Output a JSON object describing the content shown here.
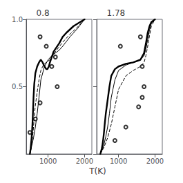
{
  "chart_data": {
    "type": "line",
    "xlabel": "T(K)",
    "color": "#000000",
    "grid": false,
    "panels": [
      {
        "title": "0.8",
        "xlim": [
          400,
          2200
        ],
        "ylim": [
          0.0,
          1.0
        ],
        "xticks": [
          1000,
          2000
        ],
        "yticks": [
          0.5,
          {
            "value": 1.0,
            "label": "1.0"
          }
        ],
        "series": [
          {
            "type": "line",
            "line_style": "bold",
            "x": [
              500,
              510,
              520,
              530,
              540,
              550,
              560,
              570,
              580,
              590,
              600,
              620,
              650,
              700,
              750,
              800,
              850,
              900,
              950,
              980,
              1000,
              1020,
              1050,
              1100,
              1150,
              1200,
              1300,
              1400,
              1500,
              1700,
              2000
            ],
            "values": [
              0.0,
              0.02,
              0.04,
              0.07,
              0.1,
              0.13,
              0.17,
              0.22,
              0.28,
              0.35,
              0.42,
              0.52,
              0.6,
              0.65,
              0.68,
              0.7,
              0.68,
              0.65,
              0.63,
              0.63,
              0.64,
              0.65,
              0.68,
              0.72,
              0.76,
              0.78,
              0.82,
              0.87,
              0.9,
              0.95,
              1.0
            ]
          },
          {
            "type": "line",
            "line_style": "solid",
            "x": [
              500,
              520,
              550,
              600,
              650,
              700,
              750,
              800,
              900,
              1000,
              1100,
              1200,
              1300,
              1400,
              1600,
              1800,
              2000
            ],
            "values": [
              0.0,
              0.02,
              0.06,
              0.12,
              0.2,
              0.3,
              0.42,
              0.55,
              0.65,
              0.7,
              0.73,
              0.75,
              0.77,
              0.8,
              0.87,
              0.93,
              1.0
            ]
          },
          {
            "type": "line",
            "line_style": "dashed",
            "x": [
              500,
              520,
              540,
              560,
              580,
              600,
              620,
              650,
              700,
              750,
              800,
              850,
              900,
              950,
              1000,
              1050,
              1100,
              1200,
              1400,
              1600,
              1800,
              2000
            ],
            "values": [
              0.0,
              0.02,
              0.05,
              0.09,
              0.14,
              0.2,
              0.28,
              0.36,
              0.46,
              0.55,
              0.62,
              0.65,
              0.67,
              0.68,
              0.69,
              0.7,
              0.72,
              0.76,
              0.83,
              0.89,
              0.94,
              1.0
            ]
          },
          {
            "type": "scatter",
            "marker": "open_circle",
            "x": [
              780,
              950,
              1200,
              1100,
              1250,
              780,
              650,
              500
            ],
            "values": [
              0.87,
              0.8,
              0.72,
              0.65,
              0.5,
              0.38,
              0.26,
              0.16
            ]
          }
        ]
      },
      {
        "title": "1.78",
        "xlim": [
          400,
          2200
        ],
        "ylim": [
          0.0,
          1.0
        ],
        "xticks": [
          1000,
          2000
        ],
        "yticks": [
          0.0,
          0.5,
          1.0
        ],
        "tick_labels": "x",
        "series": [
          {
            "type": "line",
            "line_style": "bold",
            "x": [
              500,
              520,
              540,
              560,
              580,
              600,
              620,
              650,
              700,
              750,
              800,
              900,
              1000,
              1100,
              1200,
              1400,
              1600,
              1700,
              1750,
              1800,
              1850,
              1900,
              2000
            ],
            "values": [
              0.0,
              0.02,
              0.04,
              0.07,
              0.11,
              0.16,
              0.22,
              0.3,
              0.4,
              0.5,
              0.58,
              0.63,
              0.65,
              0.66,
              0.67,
              0.68,
              0.7,
              0.75,
              0.82,
              0.9,
              0.95,
              0.98,
              1.0
            ]
          },
          {
            "type": "line",
            "line_style": "solid",
            "x": [
              500,
              550,
              600,
              650,
              700,
              750,
              800,
              900,
              1000,
              1200,
              1400,
              1600,
              1700,
              1750,
              1800,
              1850,
              1900,
              2000
            ],
            "values": [
              0.0,
              0.03,
              0.07,
              0.13,
              0.2,
              0.3,
              0.42,
              0.55,
              0.62,
              0.66,
              0.68,
              0.7,
              0.73,
              0.78,
              0.85,
              0.92,
              0.97,
              1.0
            ]
          },
          {
            "type": "line",
            "line_style": "dashed",
            "x": [
              500,
              600,
              700,
              800,
              900,
              1000,
              1200,
              1400,
              1600,
              1700,
              1750,
              1800,
              1850,
              1900,
              2000
            ],
            "values": [
              0.0,
              0.05,
              0.12,
              0.22,
              0.35,
              0.48,
              0.58,
              0.62,
              0.65,
              0.68,
              0.73,
              0.8,
              0.88,
              0.95,
              1.0
            ]
          },
          {
            "type": "scatter",
            "marker": "open_circle",
            "x": [
              1600,
              1050,
              1650,
              1700,
              1650,
              1550,
              1200,
              900
            ],
            "values": [
              0.87,
              0.8,
              0.65,
              0.5,
              0.42,
              0.35,
              0.2,
              0.1
            ]
          }
        ]
      }
    ]
  }
}
